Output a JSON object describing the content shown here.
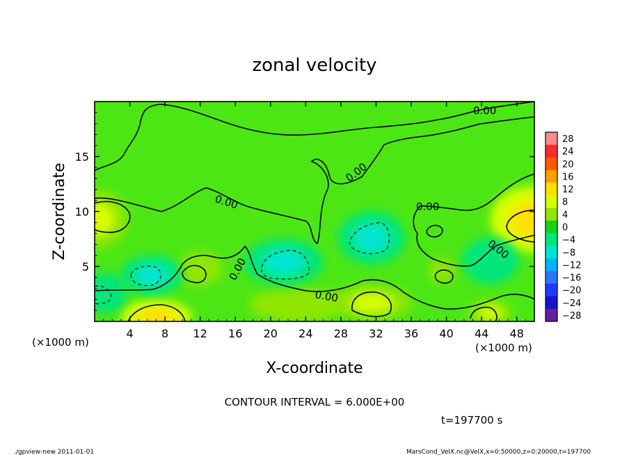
{
  "chart_data": {
    "type": "heatmap",
    "title": "zonal velocity",
    "xlabel": "X-coordinate",
    "ylabel": "Z-coordinate",
    "x_unit_left": "(×1000 m)",
    "x_unit_right": "(×1000 m)",
    "xlim": [
      0,
      50
    ],
    "ylim": [
      0,
      20
    ],
    "x_ticks": [
      4,
      8,
      12,
      16,
      20,
      24,
      28,
      32,
      36,
      40,
      44,
      48
    ],
    "y_ticks": [
      5,
      10,
      15
    ],
    "contour_label": "0.00",
    "contour_interval_text": "CONTOUR INTERVAL = 6.000E+00",
    "time_text": "t=197700 s",
    "colorbar": {
      "levels": [
        28,
        24,
        20,
        16,
        12,
        8,
        4,
        0,
        -4,
        -8,
        -12,
        -16,
        -20,
        -24,
        -28
      ],
      "colors": [
        "#ff8c8c",
        "#ff2a2a",
        "#ff5a00",
        "#ff9e00",
        "#ffe000",
        "#d8ff00",
        "#8fe600",
        "#14d414",
        "#00e67a",
        "#00e6d2",
        "#00b4ff",
        "#2878ff",
        "#1e3cff",
        "#1414c8",
        "#641ea0"
      ]
    },
    "features": [
      {
        "x": 0.5,
        "z": 9.3,
        "value": 9,
        "rx": 3.2,
        "rz": 2.6
      },
      {
        "x": 49.8,
        "z": 9.3,
        "value": 10,
        "rx": 4.8,
        "rz": 3.0
      },
      {
        "x": 7,
        "z": 0.4,
        "value": 12,
        "rx": 4.0,
        "rz": 1.6
      },
      {
        "x": 31.5,
        "z": 1.7,
        "value": 8,
        "rx": 4.5,
        "rz": 1.6
      },
      {
        "x": 23,
        "z": 1.5,
        "value": 5,
        "rx": 5.5,
        "rz": 1.5
      },
      {
        "x": 45,
        "z": 0.8,
        "value": 7,
        "rx": 2.5,
        "rz": 1.1
      },
      {
        "x": 12,
        "z": 4.8,
        "value": 5,
        "rx": 2.5,
        "rz": 1.5
      },
      {
        "x": 39.5,
        "z": 4.6,
        "value": 5,
        "rx": 1.5,
        "rz": 1.1
      },
      {
        "x": 21.5,
        "z": 5.4,
        "value": -8,
        "rx": 4.5,
        "rz": 2.1
      },
      {
        "x": 31.5,
        "z": 7.6,
        "value": -8,
        "rx": 3.8,
        "rz": 2.4
      },
      {
        "x": 6.5,
        "z": 4.2,
        "value": -7,
        "rx": 3.5,
        "rz": 1.8
      },
      {
        "x": 1.2,
        "z": 2.6,
        "value": -6,
        "rx": 2.5,
        "rz": 1.8
      },
      {
        "x": 45,
        "z": 5.5,
        "value": -5,
        "rx": 3.2,
        "rz": 2.1
      }
    ]
  },
  "footer": {
    "left": "./gpview-new   2011-01-01",
    "right": "MarsCond_VelX.nc@VelX,x=0:50000,z=0:20000,t=197700"
  }
}
